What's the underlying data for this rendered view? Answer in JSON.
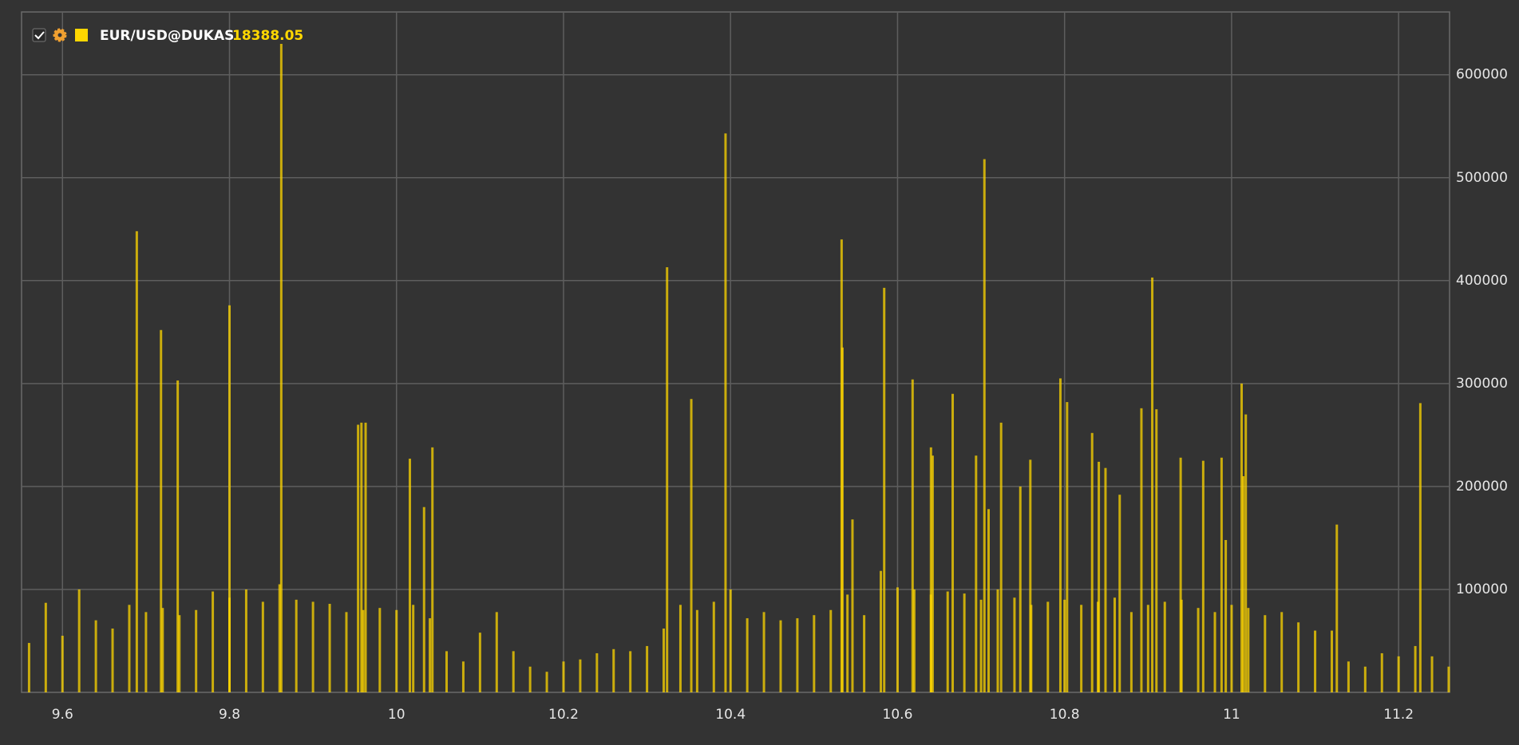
{
  "chart_data": {
    "type": "bar",
    "series": [
      {
        "name": "EUR/USD@DUKAS",
        "color": "#ffd700",
        "last_value": 18388.05,
        "x": [
          9.56,
          9.58,
          9.6,
          9.62,
          9.64,
          9.66,
          9.68,
          9.7,
          9.72,
          9.74,
          9.76,
          9.78,
          9.8,
          9.82,
          9.84,
          9.86,
          9.88,
          9.9,
          9.92,
          9.94,
          9.96,
          9.98,
          10,
          10.02,
          10.04,
          10.06,
          10.08,
          10.1,
          10.12,
          10.14,
          10.16,
          10.18,
          10.2,
          10.22,
          10.24,
          10.26,
          10.28,
          10.3,
          10.32,
          10.34,
          10.36,
          10.38,
          10.4,
          10.42,
          10.44,
          10.46,
          10.48,
          10.5,
          10.52,
          10.54,
          10.56,
          10.58,
          10.6,
          10.62,
          10.64,
          10.66,
          10.68,
          10.7,
          10.72,
          10.74,
          10.76,
          10.78,
          10.8,
          10.82,
          10.84,
          10.86,
          10.88,
          10.9,
          10.92,
          10.94,
          10.96,
          10.98,
          11,
          11.02,
          11.04,
          11.06,
          11.08,
          11.1,
          11.12,
          11.14,
          11.16,
          11.18,
          11.2,
          11.22,
          11.24,
          11.26,
          9.689,
          9.718,
          9.738,
          9.8,
          9.862,
          9.954,
          9.958,
          9.963,
          10.016,
          10.033,
          10.043,
          10.324,
          10.353,
          10.394,
          10.533,
          10.534,
          10.546,
          10.584,
          10.618,
          10.64,
          10.642,
          10.666,
          10.694,
          10.704,
          10.709,
          10.724,
          10.747,
          10.759,
          10.795,
          10.803,
          10.833,
          10.841,
          10.849,
          10.866,
          10.892,
          10.905,
          10.91,
          10.939,
          10.966,
          10.988,
          10.993,
          11.012,
          11.014,
          11.017,
          11.126,
          11.226
        ],
        "values": [
          48000,
          87000,
          55000,
          100000,
          70000,
          62000,
          85000,
          78000,
          82000,
          75000,
          80000,
          98000,
          92000,
          100000,
          88000,
          105000,
          90000,
          88000,
          86000,
          78000,
          80000,
          82000,
          80000,
          85000,
          72000,
          40000,
          30000,
          58000,
          78000,
          40000,
          25000,
          20000,
          30000,
          32000,
          38000,
          42000,
          40000,
          45000,
          62000,
          85000,
          80000,
          88000,
          100000,
          72000,
          78000,
          70000,
          72000,
          75000,
          80000,
          95000,
          75000,
          118000,
          102000,
          100000,
          95000,
          98000,
          96000,
          90000,
          100000,
          92000,
          85000,
          88000,
          90000,
          85000,
          88000,
          92000,
          78000,
          85000,
          88000,
          90000,
          82000,
          78000,
          85000,
          82000,
          75000,
          78000,
          68000,
          60000,
          60000,
          30000,
          25000,
          38000,
          35000,
          45000,
          35000,
          25000,
          448000,
          352000,
          303000,
          376000,
          630000,
          260000,
          262000,
          262000,
          227000,
          180000,
          238000,
          413000,
          285000,
          543000,
          440000,
          335000,
          168000,
          393000,
          304000,
          238000,
          230000,
          290000,
          230000,
          518000,
          178000,
          262000,
          200000,
          226000,
          305000,
          282000,
          252000,
          224000,
          218000,
          192000,
          276000,
          403000,
          275000,
          228000,
          225000,
          228000,
          148000,
          300000,
          210000,
          270000,
          163000,
          281000
        ]
      }
    ],
    "xlim": [
      9.551,
      11.261
    ],
    "xticks": [
      9.6,
      9.8,
      10,
      10.2,
      10.4,
      10.6,
      10.8,
      11,
      11.2
    ],
    "ylim": [
      0,
      661000
    ],
    "yticks": [
      100000,
      200000,
      300000,
      400000,
      500000,
      600000
    ],
    "grid": true
  }
}
